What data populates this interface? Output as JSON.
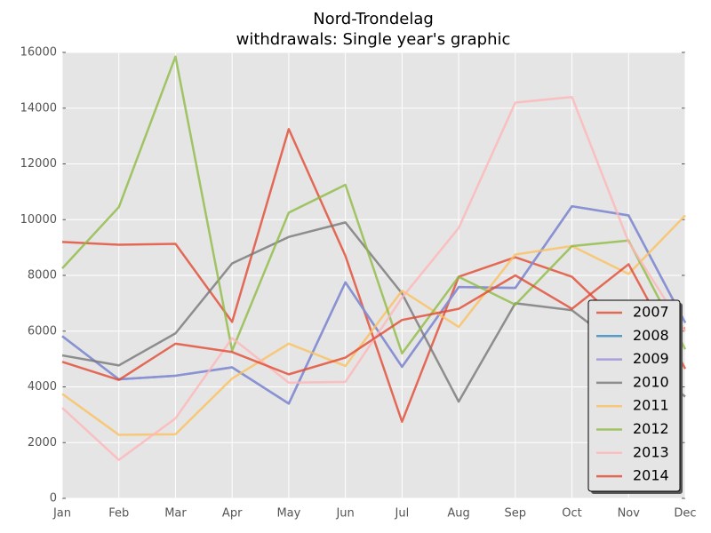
{
  "chart_data": {
    "type": "line",
    "title": [
      "Nord-Trondelag",
      "withdrawals: Single year's graphic"
    ],
    "categories": [
      "Jan",
      "Feb",
      "Mar",
      "Apr",
      "May",
      "Jun",
      "Jul",
      "Aug",
      "Sep",
      "Oct",
      "Nov",
      "Dec"
    ],
    "series": [
      {
        "name": "2007",
        "color": "#E24A33",
        "values": [
          9200,
          9100,
          9130,
          6330,
          13250,
          8700,
          2750,
          7950,
          8650,
          7950,
          6000,
          6100
        ]
      },
      {
        "name": "2008",
        "color": "#348ABD",
        "values": [
          5820,
          4270,
          4400,
          4700,
          3400,
          7750,
          4720,
          7580,
          7550,
          10480,
          10150,
          6300
        ]
      },
      {
        "name": "2009",
        "color": "#988ED5",
        "values": [
          5820,
          4270,
          4400,
          4700,
          3400,
          7750,
          4720,
          7580,
          7550,
          10480,
          10150,
          6300
        ]
      },
      {
        "name": "2010",
        "color": "#777777",
        "values": [
          5130,
          4770,
          5920,
          8430,
          9380,
          9900,
          7350,
          3470,
          7000,
          6750,
          5200,
          3650
        ]
      },
      {
        "name": "2011",
        "color": "#FBC15E",
        "values": [
          3750,
          2280,
          2300,
          4300,
          5550,
          4750,
          7450,
          6150,
          8750,
          9050,
          8050,
          10150
        ]
      },
      {
        "name": "2012",
        "color": "#8EBA42",
        "values": [
          8250,
          10450,
          15850,
          5300,
          10250,
          11250,
          5200,
          7950,
          6950,
          9050,
          9250,
          5350
        ]
      },
      {
        "name": "2013",
        "color": "#FFB5B8",
        "values": [
          3250,
          1380,
          2870,
          5750,
          4150,
          4180,
          7200,
          9700,
          14200,
          14400,
          9200,
          6000
        ]
      },
      {
        "name": "2014",
        "color": "#E24A33",
        "values": [
          4900,
          4250,
          5550,
          5250,
          4450,
          5050,
          6400,
          6800,
          8000,
          6800,
          8400,
          4650
        ]
      }
    ],
    "ylim": [
      0,
      16000
    ],
    "yticks": [
      0,
      2000,
      4000,
      6000,
      8000,
      10000,
      12000,
      14000,
      16000
    ],
    "grid": true,
    "legend": "lower right"
  }
}
